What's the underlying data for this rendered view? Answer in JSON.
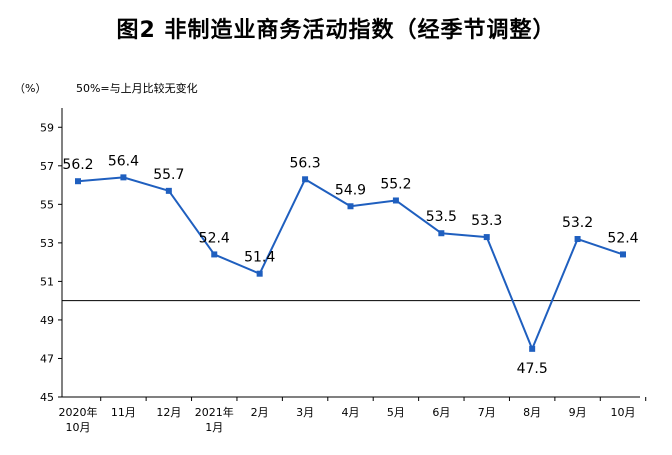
{
  "title": "图2  非制造业商务活动指数（经季节调整）",
  "unit": "（%）",
  "note": "50%=与上月比较无变化",
  "chart_data": {
    "type": "line",
    "title": "图2  非制造业商务活动指数（经季节调整）",
    "categories": [
      [
        "2020年",
        "10月"
      ],
      [
        "11月"
      ],
      [
        "12月"
      ],
      [
        "2021年",
        "1月"
      ],
      [
        "2月"
      ],
      [
        "3月"
      ],
      [
        "4月"
      ],
      [
        "5月"
      ],
      [
        "6月"
      ],
      [
        "7月"
      ],
      [
        "8月"
      ],
      [
        "9月"
      ],
      [
        "10月"
      ]
    ],
    "series": [
      {
        "values": [
          56.2,
          56.4,
          55.7,
          52.4,
          51.4,
          56.3,
          54.9,
          55.2,
          53.5,
          53.3,
          47.5,
          53.2,
          52.4
        ],
        "color": "#1f5fbf"
      }
    ],
    "yticks": [
      45,
      47,
      49,
      51,
      53,
      55,
      57,
      59
    ],
    "ylim": [
      45,
      60
    ],
    "reference_line": 50,
    "grid": false,
    "label_below": [
      47.5
    ]
  }
}
